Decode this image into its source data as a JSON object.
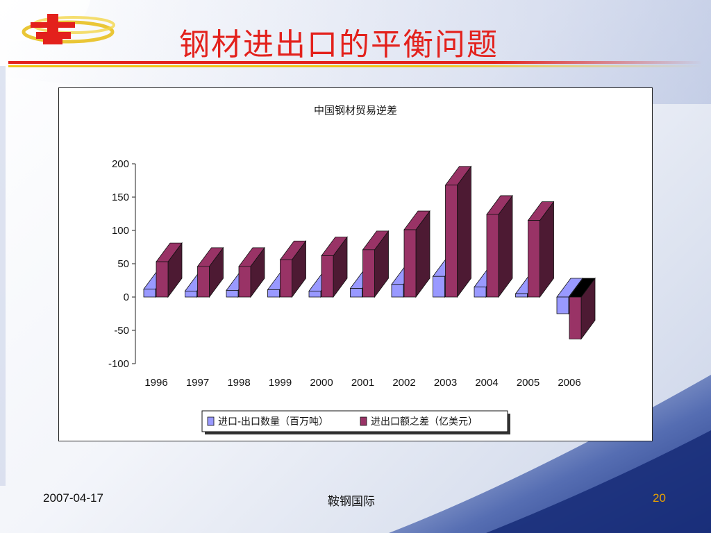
{
  "slide": {
    "title": "钢材进出口的平衡问题",
    "footer_date": "2007-04-17",
    "footer_org": "鞍钢国际",
    "page_number": "20"
  },
  "colors": {
    "title": "#e3211c",
    "series1_front": "#9999ff",
    "series1_side": "#7070c8",
    "series2_front": "#993366",
    "series2_side": "#4d1a33",
    "page_number": "#e8a100"
  },
  "chart_data": {
    "type": "bar",
    "title": "中国钢材贸易逆差",
    "xlabel": "",
    "ylabel": "",
    "categories": [
      "1996",
      "1997",
      "1998",
      "1999",
      "2000",
      "2001",
      "2002",
      "2003",
      "2004",
      "2005",
      "2006"
    ],
    "series": [
      {
        "name": "进口-出口数量（百万吨）",
        "values": [
          12,
          9,
          10,
          11,
          9,
          13,
          19,
          31,
          15,
          5,
          -25
        ]
      },
      {
        "name": "进出口额之差（亿美元）",
        "values": [
          53,
          46,
          46,
          56,
          62,
          71,
          101,
          168,
          124,
          115,
          -63
        ]
      }
    ],
    "ylim": [
      -100,
      200
    ],
    "yticks": [
      200,
      150,
      100,
      50,
      0,
      -50,
      -100
    ],
    "legend_position": "bottom",
    "grid": false,
    "style": "3d-clustered"
  }
}
